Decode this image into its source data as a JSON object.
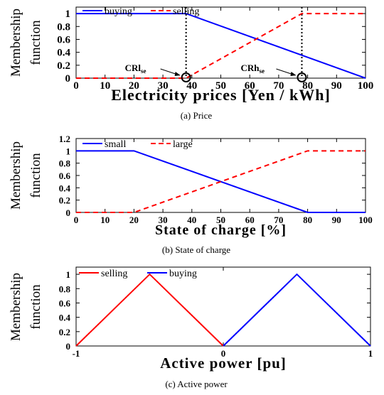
{
  "colors": {
    "blue": "#0000ff",
    "red": "#ff0000",
    "black": "#000000"
  },
  "chart_data": [
    {
      "type": "line",
      "caption": "(a) Price",
      "ylabel": [
        "Membership",
        "function"
      ],
      "xlabel": "Electricity prices [Yen / kWh]",
      "xlim": [
        0,
        100
      ],
      "ylim": [
        0,
        1.1
      ],
      "xticks": [
        0,
        10,
        20,
        30,
        40,
        50,
        60,
        70,
        80,
        90,
        100
      ],
      "yticks": [
        0,
        0.2,
        0.4,
        0.6,
        0.8,
        1
      ],
      "series": [
        {
          "name": "buying",
          "color": "blue",
          "dash": "solid",
          "x": [
            0,
            38,
            100
          ],
          "y": [
            1,
            1,
            0
          ]
        },
        {
          "name": "selling",
          "color": "red",
          "dash": "dashed",
          "x": [
            0,
            38,
            78,
            100
          ],
          "y": [
            0,
            0,
            1,
            1
          ]
        }
      ],
      "vlines": [
        38,
        78
      ],
      "annotations": [
        {
          "label": "CRl",
          "sub": "se",
          "x": 38
        },
        {
          "label": "CRh",
          "sub": "se",
          "x": 78
        }
      ]
    },
    {
      "type": "line",
      "caption": "(b) State of charge",
      "ylabel": [
        "Membership",
        "function"
      ],
      "xlabel": "State of charge [%]",
      "xlim": [
        0,
        100
      ],
      "ylim": [
        0,
        1.2
      ],
      "xticks": [
        0,
        10,
        20,
        30,
        40,
        50,
        60,
        70,
        80,
        90,
        100
      ],
      "yticks": [
        0,
        0.2,
        0.4,
        0.6,
        0.8,
        1,
        1.2
      ],
      "series": [
        {
          "name": "small",
          "color": "blue",
          "dash": "solid",
          "x": [
            0,
            20,
            80,
            100
          ],
          "y": [
            1,
            1,
            0,
            0
          ]
        },
        {
          "name": "large",
          "color": "red",
          "dash": "dashed",
          "x": [
            0,
            20,
            80,
            100
          ],
          "y": [
            0,
            0,
            1,
            1
          ]
        }
      ]
    },
    {
      "type": "line",
      "caption": "(c) Active power",
      "ylabel": [
        "Membership",
        "function"
      ],
      "xlabel": "Active power [pu]",
      "xlim": [
        -1,
        1
      ],
      "ylim": [
        0,
        1.1
      ],
      "xticks": [
        -1,
        0,
        1
      ],
      "yticks": [
        0,
        0.2,
        0.4,
        0.6,
        0.8,
        1
      ],
      "series": [
        {
          "name": "selling",
          "color": "red",
          "dash": "solid",
          "x": [
            -1,
            -0.5,
            0
          ],
          "y": [
            0,
            1,
            0
          ]
        },
        {
          "name": "buying",
          "color": "blue",
          "dash": "solid",
          "x": [
            0,
            0.5,
            1
          ],
          "y": [
            0,
            1,
            0
          ]
        }
      ]
    }
  ]
}
